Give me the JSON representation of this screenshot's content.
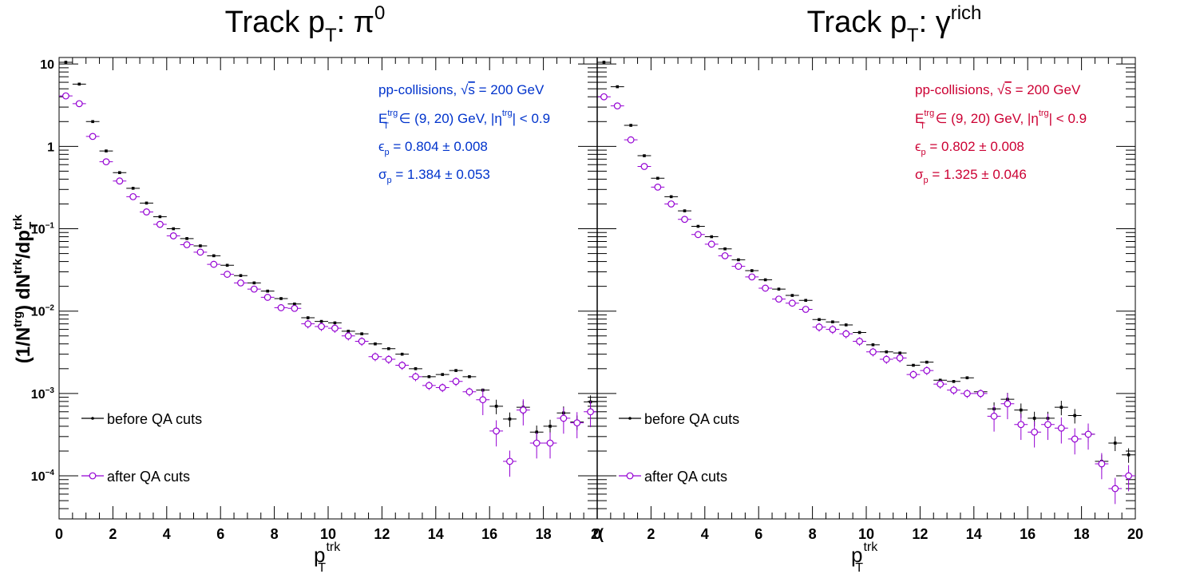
{
  "chart_data": [
    {
      "type": "scatter",
      "title": {
        "main": "Track p",
        "sub": "T",
        "rest": ": π",
        "sup": "0"
      },
      "xlabel": {
        "main": "p",
        "sup": "trk",
        "sub": "T"
      },
      "ylabel": {
        "p1": "(1/N",
        "p1sup": "trg",
        "p2": ") dN",
        "p2sup": "trk",
        "p3": "/dp",
        "p3sup": "trk",
        "p3sub": "T"
      },
      "xlim": [
        0,
        20
      ],
      "ylim": [
        3e-05,
        12
      ],
      "yscale": "log",
      "xticks": [
        "0",
        "2",
        "4",
        "6",
        "8",
        "10",
        "12",
        "14",
        "16",
        "18",
        "2("
      ],
      "yticks": [
        {
          "base": "10",
          "exp": ""
        },
        {
          "base": "1",
          "exp": ""
        },
        {
          "base": "10",
          "exp": "−1"
        },
        {
          "base": "10",
          "exp": "−2"
        },
        {
          "base": "10",
          "exp": "−3"
        },
        {
          "base": "10",
          "exp": "−4"
        }
      ],
      "annotation_color": "#0033cc",
      "annotations": [
        {
          "a": "pp-collisions, ",
          "rad": "√",
          "b": "s",
          "c": " = 200 GeV"
        },
        {
          "a": "E",
          "sup": "trg",
          "sub": "T",
          "b": " ∈ (9, 20) GeV, |η",
          "sup2": "trg",
          "c": "| < 0.9"
        },
        {
          "a": "ϵ",
          "sub": "p",
          "b": " = 0.804 ± 0.008"
        },
        {
          "a": "σ",
          "sub": "p",
          "b": " = 1.384 ± 0.053"
        }
      ],
      "legend": {
        "placement": "bottom-left",
        "entries": [
          "before QA cuts",
          "after QA cuts"
        ]
      },
      "series": [
        {
          "name": "before QA cuts",
          "color": "#000000",
          "x": [
            0.25,
            0.75,
            1.25,
            1.75,
            2.25,
            2.75,
            3.25,
            3.75,
            4.25,
            4.75,
            5.25,
            5.75,
            6.25,
            6.75,
            7.25,
            7.75,
            8.25,
            8.75,
            9.25,
            9.75,
            10.25,
            10.75,
            11.25,
            11.75,
            12.25,
            12.75,
            13.25,
            13.75,
            14.25,
            14.75,
            15.25,
            15.75,
            16.25,
            16.75,
            17.25,
            17.75,
            18.25,
            18.75,
            19.25,
            19.75
          ],
          "y": [
            10.5,
            5.7,
            2.0,
            0.88,
            0.48,
            0.31,
            0.205,
            0.14,
            0.1,
            0.076,
            0.062,
            0.047,
            0.036,
            0.027,
            0.022,
            0.0175,
            0.0142,
            0.0122,
            0.0083,
            0.0075,
            0.0072,
            0.0057,
            0.0053,
            0.004,
            0.0035,
            0.003,
            0.002,
            0.0016,
            0.0017,
            0.0019,
            0.0016,
            0.0011,
            0.0007,
            0.00049,
            0.00068,
            0.00034,
            0.0004,
            0.00058,
            0.00045,
            0.00079
          ]
        },
        {
          "name": "after QA cuts",
          "color": "#9400d3",
          "x": [
            0.25,
            0.75,
            1.25,
            1.75,
            2.25,
            2.75,
            3.25,
            3.75,
            4.25,
            4.75,
            5.25,
            5.75,
            6.25,
            6.75,
            7.25,
            7.75,
            8.25,
            8.75,
            9.25,
            9.75,
            10.25,
            10.75,
            11.25,
            11.75,
            12.25,
            12.75,
            13.25,
            13.75,
            14.25,
            14.75,
            15.25,
            15.75,
            16.25,
            16.75,
            17.25,
            17.75,
            18.25,
            18.75,
            19.25,
            19.75
          ],
          "y": [
            4.1,
            3.3,
            1.32,
            0.65,
            0.38,
            0.245,
            0.16,
            0.113,
            0.082,
            0.064,
            0.052,
            0.037,
            0.028,
            0.022,
            0.0185,
            0.0147,
            0.011,
            0.0108,
            0.007,
            0.0065,
            0.0062,
            0.005,
            0.0043,
            0.0028,
            0.0026,
            0.0022,
            0.0016,
            0.00125,
            0.00118,
            0.0014,
            0.00105,
            0.00084,
            0.00035,
            0.00015,
            0.00063,
            0.00025,
            0.00025,
            0.0005,
            0.00044,
            0.0006
          ]
        }
      ]
    },
    {
      "type": "scatter",
      "title": {
        "main": "Track p",
        "sub": "T",
        "rest": ": γ",
        "sup": "rich"
      },
      "xlabel": {
        "main": "p",
        "sup": "trk",
        "sub": "T"
      },
      "xlim": [
        0,
        20
      ],
      "ylim": [
        3e-05,
        12
      ],
      "yscale": "log",
      "xticks": [
        "0",
        "2",
        "4",
        "6",
        "8",
        "10",
        "12",
        "14",
        "16",
        "18",
        "20"
      ],
      "annotation_color": "#cc0033",
      "annotations": [
        {
          "a": "pp-collisions, ",
          "rad": "√",
          "b": "s",
          "c": " = 200 GeV"
        },
        {
          "a": "E",
          "sup": "trg",
          "sub": "T",
          "b": " ∈ (9, 20) GeV, |η",
          "sup2": "trg",
          "c": "| < 0.9"
        },
        {
          "a": "ϵ",
          "sub": "p",
          "b": " = 0.802 ± 0.008"
        },
        {
          "a": "σ",
          "sub": "p",
          "b": " = 1.325 ± 0.046"
        }
      ],
      "legend": {
        "placement": "bottom-left",
        "entries": [
          "before QA cuts",
          "after QA cuts"
        ]
      },
      "series": [
        {
          "name": "before QA cuts",
          "color": "#000000",
          "x": [
            0.25,
            0.75,
            1.25,
            1.75,
            2.25,
            2.75,
            3.25,
            3.75,
            4.25,
            4.75,
            5.25,
            5.75,
            6.25,
            6.75,
            7.25,
            7.75,
            8.25,
            8.75,
            9.25,
            9.75,
            10.25,
            10.75,
            11.25,
            11.75,
            12.25,
            12.75,
            13.25,
            13.75,
            14.25,
            14.75,
            15.25,
            15.75,
            16.25,
            16.75,
            17.25,
            17.75,
            18.25,
            18.75,
            19.25,
            19.75
          ],
          "y": [
            10.5,
            5.3,
            1.8,
            0.77,
            0.41,
            0.245,
            0.165,
            0.107,
            0.08,
            0.057,
            0.042,
            0.031,
            0.024,
            0.0185,
            0.0155,
            0.0135,
            0.0079,
            0.0074,
            0.0068,
            0.0055,
            0.0039,
            0.0032,
            0.0031,
            0.0022,
            0.0024,
            0.00145,
            0.0014,
            0.00155,
            0.00105,
            0.00065,
            0.00085,
            0.00063,
            0.0005,
            0.0005,
            0.00068,
            0.00054,
            0.00032,
            0.00015,
            0.00025,
            0.00018
          ]
        },
        {
          "name": "after QA cuts",
          "color": "#9400d3",
          "x": [
            0.25,
            0.75,
            1.25,
            1.75,
            2.25,
            2.75,
            3.25,
            3.75,
            4.25,
            4.75,
            5.25,
            5.75,
            6.25,
            6.75,
            7.25,
            7.75,
            8.25,
            8.75,
            9.25,
            9.75,
            10.25,
            10.75,
            11.25,
            11.75,
            12.25,
            12.75,
            13.25,
            13.75,
            14.25,
            14.75,
            15.25,
            15.75,
            16.25,
            16.75,
            17.25,
            17.75,
            18.25,
            18.75,
            19.25,
            19.75
          ],
          "y": [
            4.0,
            3.1,
            1.2,
            0.57,
            0.32,
            0.2,
            0.13,
            0.085,
            0.065,
            0.047,
            0.035,
            0.026,
            0.019,
            0.014,
            0.0125,
            0.0105,
            0.0064,
            0.006,
            0.0053,
            0.0043,
            0.0032,
            0.0026,
            0.0027,
            0.0017,
            0.0019,
            0.0013,
            0.0011,
            0.001,
            0.001,
            0.00053,
            0.00075,
            0.00042,
            0.00034,
            0.00042,
            0.00038,
            0.00028,
            0.00032,
            0.00014,
            7e-05,
            0.0001
          ]
        }
      ]
    }
  ]
}
